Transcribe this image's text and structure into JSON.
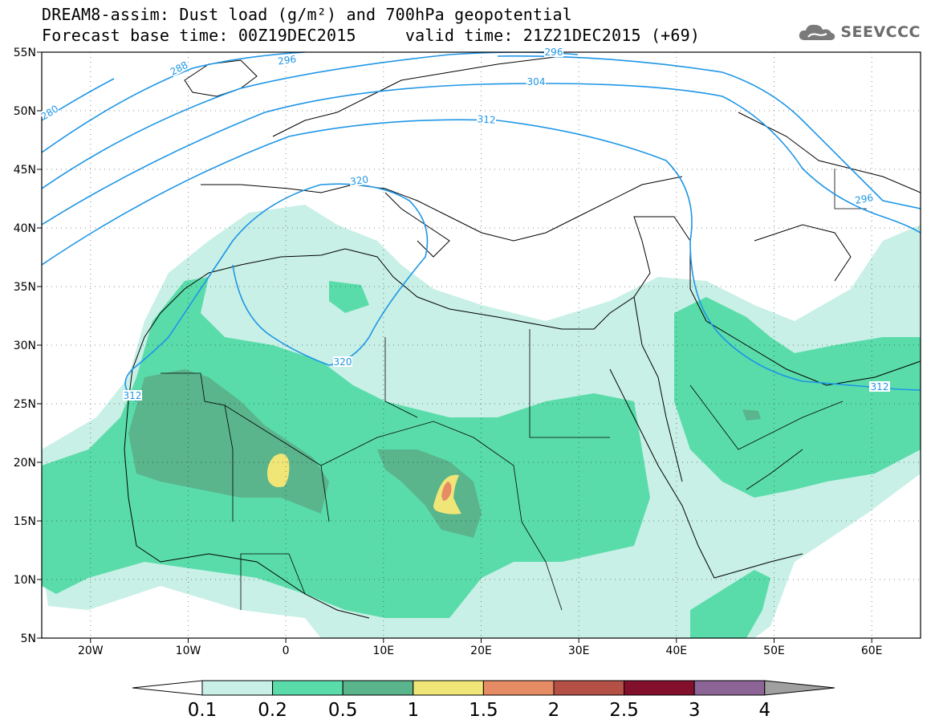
{
  "header": {
    "title_line1": "DREAM8-assim: Dust load (g/m²) and 700hPa geopotential",
    "title_line2": "Forecast base time: 00Z19DEC2015     valid time: 21Z21DEC2015 (+69)"
  },
  "logo": {
    "icon": "cloud-icon",
    "text": "SEEVCCC"
  },
  "map": {
    "lon_range": [
      -25,
      65
    ],
    "lat_range": [
      5,
      55
    ],
    "lat_labels": [
      "55N",
      "50N",
      "45N",
      "40N",
      "35N",
      "30N",
      "25N",
      "20N",
      "15N",
      "10N",
      "5N"
    ],
    "lon_labels": [
      "20W",
      "10W",
      "0",
      "10E",
      "20E",
      "30E",
      "40E",
      "50E",
      "60E"
    ],
    "contour_labels": [
      "280",
      "288",
      "296",
      "304",
      "312",
      "320",
      "320",
      "312",
      "296",
      "312",
      "296"
    ],
    "contour_color": "#1e96e6"
  },
  "colorbar": {
    "labels": [
      "0.1",
      "0.2",
      "0.5",
      "1",
      "1.5",
      "2",
      "2.5",
      "3",
      "4"
    ],
    "colors": [
      "#c8f0e6",
      "#5adcaa",
      "#5ab48c",
      "#f0e678",
      "#e68c64",
      "#b45046",
      "#82102d",
      "#8c6496",
      "#a0a0a0"
    ]
  }
}
